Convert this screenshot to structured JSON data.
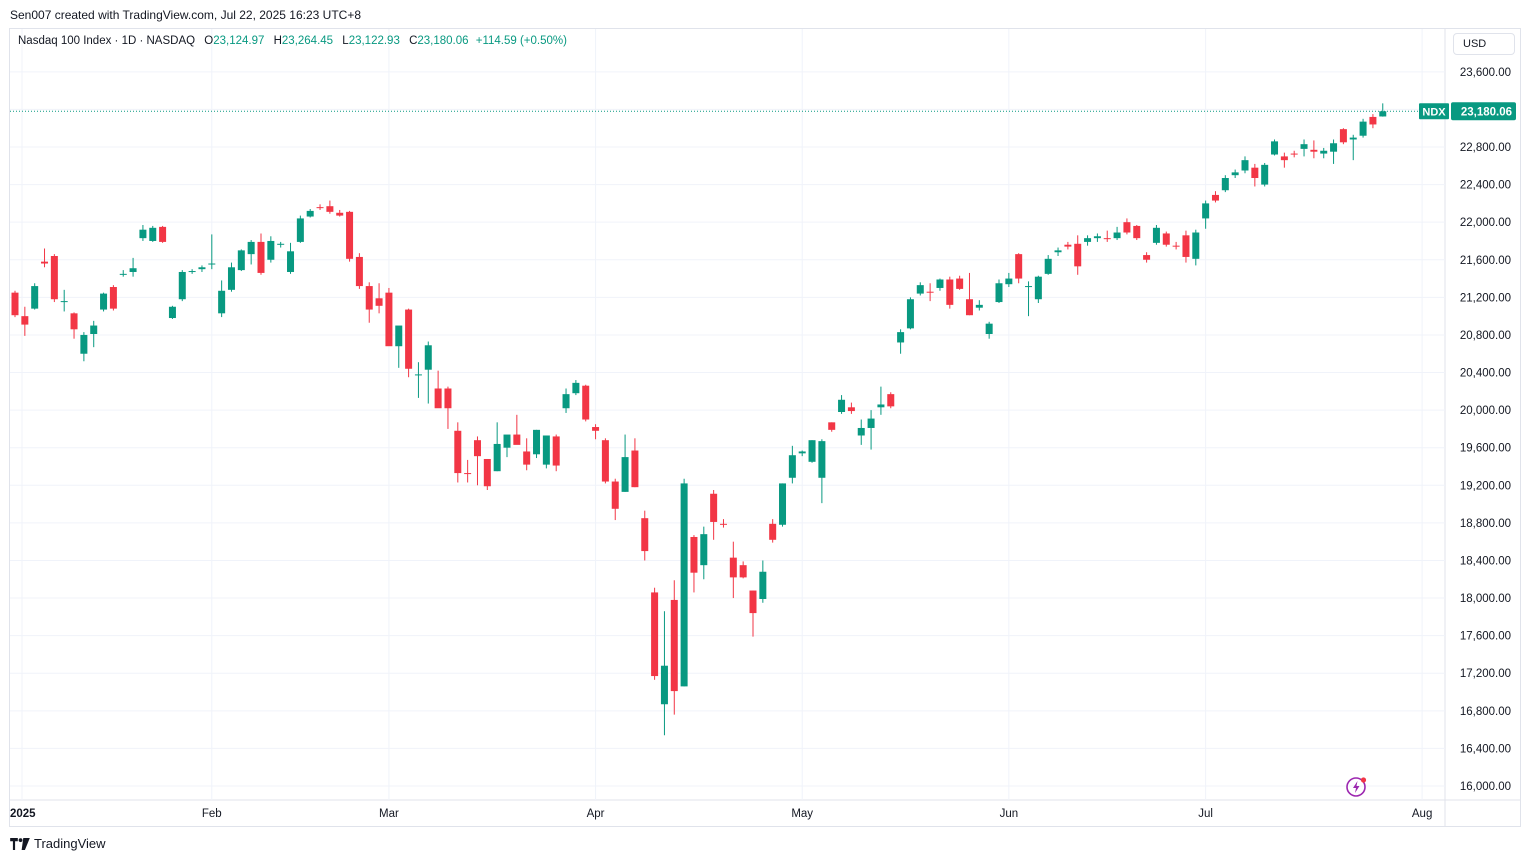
{
  "header": {
    "credit": "Sen007 created with TradingView.com, Jul 22, 2025 16:23 UTC+8"
  },
  "legend": {
    "symbol": "Nasdaq 100 Index · 1D · NASDAQ",
    "o_label": "O",
    "o_value": "23,124.97",
    "h_label": "H",
    "h_value": "23,264.45",
    "l_label": "L",
    "l_value": "23,122.93",
    "c_label": "C",
    "c_value": "23,180.06",
    "change": "+114.59 (+0.50%)"
  },
  "currency_button": "USD",
  "price_tag": {
    "symbol": "NDX",
    "value": "23,180.06"
  },
  "footer": {
    "brand": "TradingView"
  },
  "colors": {
    "up": "#089981",
    "down": "#f23645",
    "grid": "#f0f3fa",
    "tag": "#089981",
    "accent": "#9c27b0"
  },
  "icons": {
    "lightning": "lightning-icon",
    "logo": "tradingview-logo-icon"
  },
  "chart_data": {
    "type": "candlestick",
    "title": "Nasdaq 100 Index · 1D · NASDAQ",
    "currency": "USD",
    "y_ticks": [
      16000,
      16400,
      16800,
      17200,
      17600,
      18000,
      18400,
      18800,
      19200,
      19600,
      20000,
      20400,
      20800,
      21200,
      21600,
      22000,
      22400,
      22800,
      23600
    ],
    "y_tick_labels": [
      "16,000.00",
      "16,400.00",
      "16,800.00",
      "17,200.00",
      "17,600.00",
      "18,000.00",
      "18,400.00",
      "18,800.00",
      "19,200.00",
      "19,600.00",
      "20,000.00",
      "20,400.00",
      "20,800.00",
      "21,200.00",
      "21,600.00",
      "22,000.00",
      "22,400.00",
      "22,800.00",
      "23,600.00"
    ],
    "ylim": [
      15900,
      23900
    ],
    "x_ticks": [
      {
        "label": "2025",
        "index": 0,
        "bold": true
      },
      {
        "label": "Feb",
        "index": 20
      },
      {
        "label": "Mar",
        "index": 38
      },
      {
        "label": "Apr",
        "index": 59
      },
      {
        "label": "May",
        "index": 80
      },
      {
        "label": "Jun",
        "index": 101
      },
      {
        "label": "Jul",
        "index": 121
      },
      {
        "label": "Aug",
        "index": 143
      }
    ],
    "last_price": 23180.06,
    "series": [
      {
        "o": 21250,
        "h": 21270,
        "l": 20990,
        "c": 21010
      },
      {
        "o": 21000,
        "h": 21100,
        "l": 20790,
        "c": 20910
      },
      {
        "o": 21080,
        "h": 21350,
        "l": 21070,
        "c": 21320
      },
      {
        "o": 21580,
        "h": 21720,
        "l": 21520,
        "c": 21560
      },
      {
        "o": 21640,
        "h": 21660,
        "l": 21150,
        "c": 21180
      },
      {
        "o": 21150,
        "h": 21280,
        "l": 21050,
        "c": 21160
      },
      {
        "o": 21030,
        "h": 21040,
        "l": 20760,
        "c": 20860
      },
      {
        "o": 20600,
        "h": 20830,
        "l": 20520,
        "c": 20800
      },
      {
        "o": 20810,
        "h": 20950,
        "l": 20670,
        "c": 20900
      },
      {
        "o": 21070,
        "h": 21250,
        "l": 21050,
        "c": 21240
      },
      {
        "o": 21310,
        "h": 21330,
        "l": 21060,
        "c": 21080
      },
      {
        "o": 21440,
        "h": 21490,
        "l": 21420,
        "c": 21450
      },
      {
        "o": 21470,
        "h": 21620,
        "l": 21420,
        "c": 21510
      },
      {
        "o": 21830,
        "h": 21970,
        "l": 21800,
        "c": 21920
      },
      {
        "o": 21800,
        "h": 21960,
        "l": 21790,
        "c": 21940
      },
      {
        "o": 21950,
        "h": 21960,
        "l": 21780,
        "c": 21790
      },
      {
        "o": 20980,
        "h": 21110,
        "l": 20970,
        "c": 21100
      },
      {
        "o": 21180,
        "h": 21490,
        "l": 21160,
        "c": 21470
      },
      {
        "o": 21470,
        "h": 21500,
        "l": 21450,
        "c": 21480
      },
      {
        "o": 21500,
        "h": 21540,
        "l": 21470,
        "c": 21520
      },
      {
        "o": 21550,
        "h": 21870,
        "l": 21500,
        "c": 21560
      },
      {
        "o": 21030,
        "h": 21380,
        "l": 20990,
        "c": 21270
      },
      {
        "o": 21280,
        "h": 21570,
        "l": 21260,
        "c": 21520
      },
      {
        "o": 21490,
        "h": 21710,
        "l": 21480,
        "c": 21700
      },
      {
        "o": 21660,
        "h": 21810,
        "l": 21550,
        "c": 21790
      },
      {
        "o": 21790,
        "h": 21880,
        "l": 21440,
        "c": 21460
      },
      {
        "o": 21600,
        "h": 21850,
        "l": 21570,
        "c": 21800
      },
      {
        "o": 21760,
        "h": 21790,
        "l": 21730,
        "c": 21770
      },
      {
        "o": 21470,
        "h": 21780,
        "l": 21450,
        "c": 21690
      },
      {
        "o": 21790,
        "h": 22070,
        "l": 21780,
        "c": 22040
      },
      {
        "o": 22060,
        "h": 22140,
        "l": 22050,
        "c": 22120
      },
      {
        "o": 22160,
        "h": 22190,
        "l": 22130,
        "c": 22150
      },
      {
        "o": 22170,
        "h": 22230,
        "l": 22090,
        "c": 22110
      },
      {
        "o": 22100,
        "h": 22130,
        "l": 22060,
        "c": 22070
      },
      {
        "o": 22110,
        "h": 22120,
        "l": 21580,
        "c": 21610
      },
      {
        "o": 21630,
        "h": 21670,
        "l": 21290,
        "c": 21320
      },
      {
        "o": 21320,
        "h": 21360,
        "l": 20930,
        "c": 21070
      },
      {
        "o": 21190,
        "h": 21350,
        "l": 21030,
        "c": 21110
      },
      {
        "o": 21250,
        "h": 21300,
        "l": 20690,
        "c": 20680
      },
      {
        "o": 20680,
        "h": 20890,
        "l": 20450,
        "c": 20900
      },
      {
        "o": 21070,
        "h": 21080,
        "l": 20350,
        "c": 20440
      },
      {
        "o": 20370,
        "h": 20510,
        "l": 20130,
        "c": 20380
      },
      {
        "o": 20430,
        "h": 20730,
        "l": 20070,
        "c": 20690
      },
      {
        "o": 20230,
        "h": 20420,
        "l": 20090,
        "c": 20020
      },
      {
        "o": 20230,
        "h": 20250,
        "l": 19800,
        "c": 20020
      },
      {
        "o": 19780,
        "h": 19870,
        "l": 19230,
        "c": 19330
      },
      {
        "o": 19330,
        "h": 19470,
        "l": 19230,
        "c": 19320
      },
      {
        "o": 19680,
        "h": 19720,
        "l": 19200,
        "c": 19510
      },
      {
        "o": 19480,
        "h": 19480,
        "l": 19150,
        "c": 19190
      },
      {
        "o": 19350,
        "h": 19870,
        "l": 19350,
        "c": 19640
      },
      {
        "o": 19600,
        "h": 19700,
        "l": 19500,
        "c": 19740
      },
      {
        "o": 19740,
        "h": 19950,
        "l": 19650,
        "c": 19630
      },
      {
        "o": 19560,
        "h": 19700,
        "l": 19360,
        "c": 19420
      },
      {
        "o": 19530,
        "h": 19790,
        "l": 19490,
        "c": 19790
      },
      {
        "o": 19420,
        "h": 19730,
        "l": 19380,
        "c": 19730
      },
      {
        "o": 19720,
        "h": 19740,
        "l": 19350,
        "c": 19410
      },
      {
        "o": 20020,
        "h": 20230,
        "l": 19970,
        "c": 20170
      },
      {
        "o": 20180,
        "h": 20320,
        "l": 20160,
        "c": 20290
      },
      {
        "o": 20260,
        "h": 20270,
        "l": 19880,
        "c": 19900
      },
      {
        "o": 19820,
        "h": 19850,
        "l": 19690,
        "c": 19780
      },
      {
        "o": 19680,
        "h": 19700,
        "l": 19220,
        "c": 19240
      },
      {
        "o": 19240,
        "h": 19270,
        "l": 18830,
        "c": 18950
      },
      {
        "o": 19130,
        "h": 19740,
        "l": 19130,
        "c": 19500
      },
      {
        "o": 19570,
        "h": 19700,
        "l": 19180,
        "c": 19180
      },
      {
        "o": 18850,
        "h": 18930,
        "l": 18400,
        "c": 18500
      },
      {
        "o": 18060,
        "h": 18110,
        "l": 17130,
        "c": 17170
      },
      {
        "o": 16870,
        "h": 17860,
        "l": 16540,
        "c": 17280
      },
      {
        "o": 17980,
        "h": 18190,
        "l": 16760,
        "c": 17010
      },
      {
        "o": 17060,
        "h": 19270,
        "l": 17060,
        "c": 19220
      },
      {
        "o": 18650,
        "h": 18670,
        "l": 18060,
        "c": 18270
      },
      {
        "o": 18350,
        "h": 18760,
        "l": 18200,
        "c": 18680
      },
      {
        "o": 19110,
        "h": 19150,
        "l": 18620,
        "c": 18810
      },
      {
        "o": 18790,
        "h": 18840,
        "l": 18750,
        "c": 18780
      },
      {
        "o": 18430,
        "h": 18600,
        "l": 18000,
        "c": 18220
      },
      {
        "o": 18350,
        "h": 18390,
        "l": 18210,
        "c": 18220
      },
      {
        "o": 18080,
        "h": 18080,
        "l": 17590,
        "c": 17840
      },
      {
        "o": 17990,
        "h": 18400,
        "l": 17950,
        "c": 18280
      },
      {
        "o": 18790,
        "h": 18840,
        "l": 18590,
        "c": 18620
      },
      {
        "o": 18780,
        "h": 19220,
        "l": 18760,
        "c": 19220
      },
      {
        "o": 19280,
        "h": 19620,
        "l": 19220,
        "c": 19520
      },
      {
        "o": 19540,
        "h": 19570,
        "l": 19510,
        "c": 19560
      },
      {
        "o": 19450,
        "h": 19680,
        "l": 19440,
        "c": 19680
      },
      {
        "o": 19280,
        "h": 19690,
        "l": 19010,
        "c": 19670
      },
      {
        "o": 19870,
        "h": 19870,
        "l": 19770,
        "c": 19790
      },
      {
        "o": 19980,
        "h": 20160,
        "l": 19960,
        "c": 20110
      },
      {
        "o": 20030,
        "h": 20080,
        "l": 19960,
        "c": 19990
      },
      {
        "o": 19730,
        "h": 19900,
        "l": 19630,
        "c": 19810
      },
      {
        "o": 19810,
        "h": 20000,
        "l": 19580,
        "c": 19910
      },
      {
        "o": 20030,
        "h": 20250,
        "l": 19950,
        "c": 20060
      },
      {
        "o": 20170,
        "h": 20190,
        "l": 20020,
        "c": 20040
      },
      {
        "o": 20720,
        "h": 20860,
        "l": 20600,
        "c": 20830
      },
      {
        "o": 20870,
        "h": 21200,
        "l": 20860,
        "c": 21180
      },
      {
        "o": 21240,
        "h": 21360,
        "l": 21220,
        "c": 21330
      },
      {
        "o": 21260,
        "h": 21350,
        "l": 21160,
        "c": 21250
      },
      {
        "o": 21300,
        "h": 21400,
        "l": 21270,
        "c": 21390
      },
      {
        "o": 21390,
        "h": 21420,
        "l": 21080,
        "c": 21120
      },
      {
        "o": 21400,
        "h": 21430,
        "l": 21280,
        "c": 21290
      },
      {
        "o": 21180,
        "h": 21460,
        "l": 21010,
        "c": 21010
      },
      {
        "o": 21090,
        "h": 21170,
        "l": 21060,
        "c": 21120
      },
      {
        "o": 20810,
        "h": 20940,
        "l": 20760,
        "c": 20920
      },
      {
        "o": 21150,
        "h": 21390,
        "l": 21140,
        "c": 21350
      },
      {
        "o": 21340,
        "h": 21460,
        "l": 21310,
        "c": 21400
      },
      {
        "o": 21660,
        "h": 21670,
        "l": 21350,
        "c": 21400
      },
      {
        "o": 21310,
        "h": 21370,
        "l": 21000,
        "c": 21320
      },
      {
        "o": 21180,
        "h": 21430,
        "l": 21140,
        "c": 21420
      },
      {
        "o": 21450,
        "h": 21650,
        "l": 21440,
        "c": 21610
      },
      {
        "o": 21680,
        "h": 21730,
        "l": 21640,
        "c": 21700
      },
      {
        "o": 21760,
        "h": 21790,
        "l": 21710,
        "c": 21740
      },
      {
        "o": 21770,
        "h": 21860,
        "l": 21440,
        "c": 21530
      },
      {
        "o": 21790,
        "h": 21860,
        "l": 21750,
        "c": 21830
      },
      {
        "o": 21830,
        "h": 21880,
        "l": 21790,
        "c": 21850
      },
      {
        "o": 21830,
        "h": 21910,
        "l": 21790,
        "c": 21820
      },
      {
        "o": 21830,
        "h": 21950,
        "l": 21810,
        "c": 21890
      },
      {
        "o": 22000,
        "h": 22040,
        "l": 21870,
        "c": 21890
      },
      {
        "o": 21960,
        "h": 21970,
        "l": 21810,
        "c": 21830
      },
      {
        "o": 21650,
        "h": 21680,
        "l": 21570,
        "c": 21600
      },
      {
        "o": 21780,
        "h": 21970,
        "l": 21760,
        "c": 21940
      },
      {
        "o": 21880,
        "h": 21900,
        "l": 21740,
        "c": 21760
      },
      {
        "o": 21750,
        "h": 21790,
        "l": 21710,
        "c": 21740
      },
      {
        "o": 21860,
        "h": 21910,
        "l": 21570,
        "c": 21630
      },
      {
        "o": 21610,
        "h": 21920,
        "l": 21540,
        "c": 21890
      },
      {
        "o": 22040,
        "h": 22230,
        "l": 21930,
        "c": 22200
      },
      {
        "o": 22290,
        "h": 22330,
        "l": 22210,
        "c": 22230
      },
      {
        "o": 22340,
        "h": 22500,
        "l": 22320,
        "c": 22470
      },
      {
        "o": 22500,
        "h": 22560,
        "l": 22470,
        "c": 22530
      },
      {
        "o": 22550,
        "h": 22700,
        "l": 22520,
        "c": 22660
      },
      {
        "o": 22580,
        "h": 22620,
        "l": 22380,
        "c": 22470
      },
      {
        "o": 22400,
        "h": 22630,
        "l": 22380,
        "c": 22610
      },
      {
        "o": 22720,
        "h": 22880,
        "l": 22710,
        "c": 22860
      },
      {
        "o": 22700,
        "h": 22740,
        "l": 22580,
        "c": 22660
      },
      {
        "o": 22730,
        "h": 22760,
        "l": 22690,
        "c": 22720
      },
      {
        "o": 22780,
        "h": 22880,
        "l": 22700,
        "c": 22830
      },
      {
        "o": 22770,
        "h": 22870,
        "l": 22680,
        "c": 22750
      },
      {
        "o": 22730,
        "h": 22790,
        "l": 22680,
        "c": 22760
      },
      {
        "o": 22750,
        "h": 22880,
        "l": 22620,
        "c": 22840
      },
      {
        "o": 22990,
        "h": 23000,
        "l": 22830,
        "c": 22850
      },
      {
        "o": 22880,
        "h": 22930,
        "l": 22660,
        "c": 22900
      },
      {
        "o": 22920,
        "h": 23100,
        "l": 22900,
        "c": 23070
      },
      {
        "o": 23120,
        "h": 23150,
        "l": 23000,
        "c": 23040
      },
      {
        "o": 23124.97,
        "h": 23264.45,
        "l": 23122.93,
        "c": 23180.06
      }
    ]
  }
}
